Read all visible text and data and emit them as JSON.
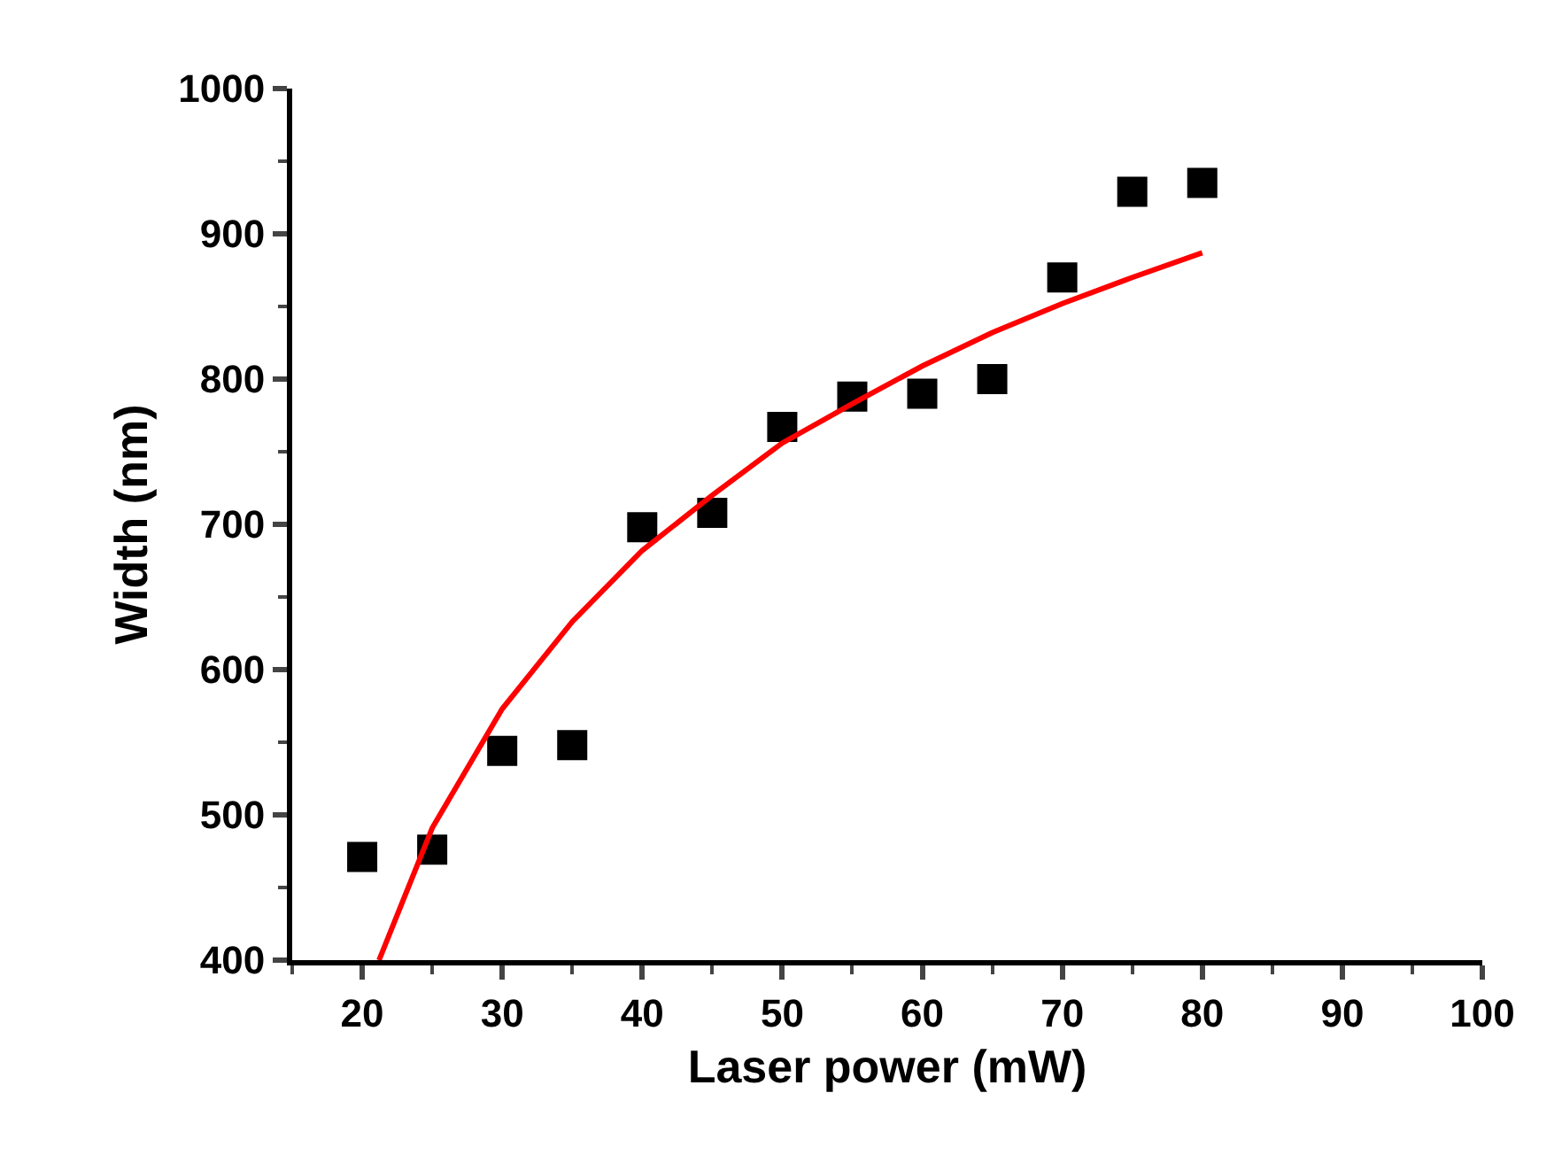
{
  "chart_data": {
    "type": "scatter",
    "xlabel": "Laser power (mW)",
    "ylabel": "Width (nm)",
    "xlim": [
      15,
      100
    ],
    "xticks": [
      20,
      30,
      40,
      50,
      60,
      70,
      80,
      90,
      100
    ],
    "ylim": [
      400,
      1000
    ],
    "yticks": [
      400,
      500,
      600,
      700,
      800,
      900,
      1000
    ],
    "series": [
      {
        "marker": "square",
        "color": "#000000",
        "x": [
          20,
          25,
          30,
          35,
          40,
          45,
          50,
          55,
          60,
          65,
          70,
          75,
          80
        ],
        "values": [
          471,
          476,
          544,
          548,
          698,
          708,
          767,
          788,
          790,
          800,
          870,
          929,
          935
        ]
      },
      {
        "type": "line",
        "marker": "none",
        "line_style": "solid",
        "color": "#ff0000",
        "x": [
          21.2,
          25,
          30,
          35,
          40,
          45,
          50,
          55,
          60,
          65,
          70,
          75,
          80
        ],
        "values": [
          400,
          491,
          573,
          633,
          682,
          720,
          756,
          783,
          809,
          832,
          852,
          870,
          887
        ]
      }
    ]
  }
}
